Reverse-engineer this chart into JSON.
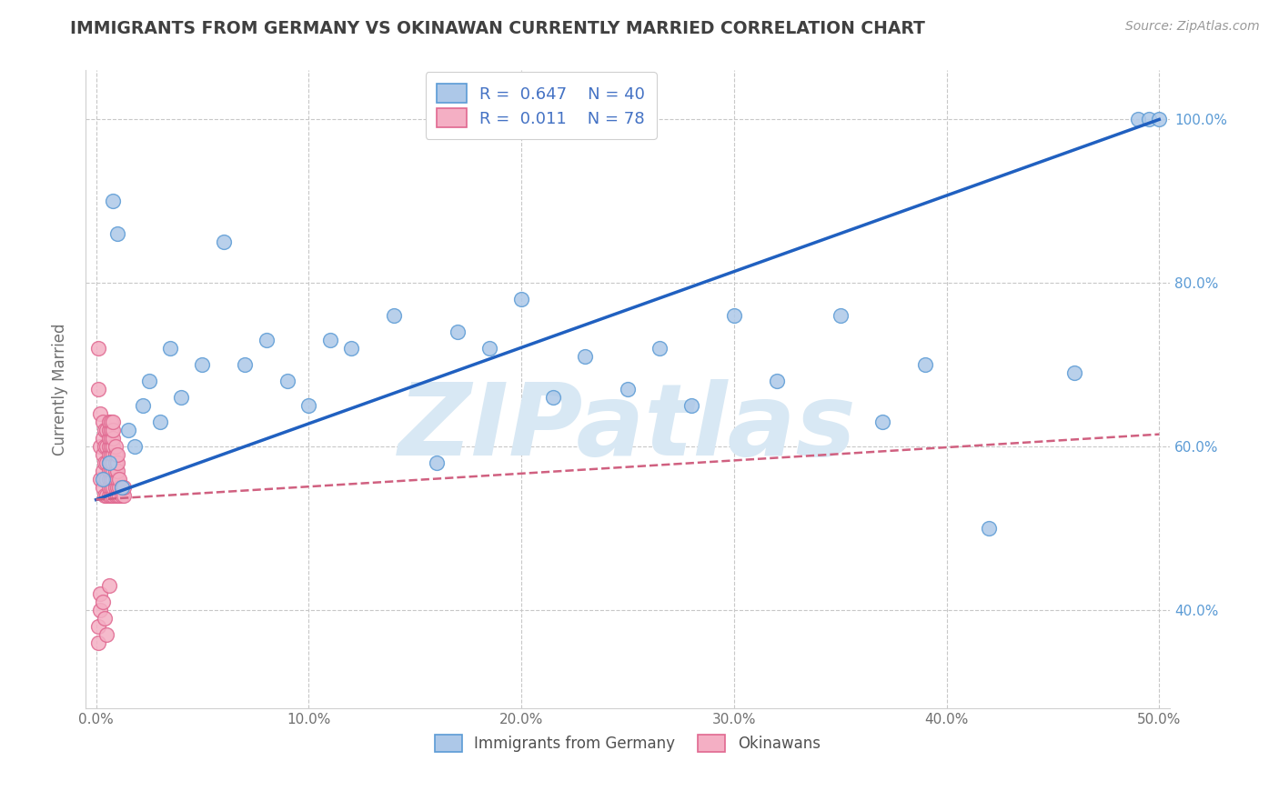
{
  "title": "IMMIGRANTS FROM GERMANY VS OKINAWAN CURRENTLY MARRIED CORRELATION CHART",
  "source_text": "Source: ZipAtlas.com",
  "xlabel": "",
  "ylabel": "Currently Married",
  "xlim": [
    -0.005,
    0.505
  ],
  "ylim": [
    0.28,
    1.06
  ],
  "xtick_labels": [
    "0.0%",
    "10.0%",
    "20.0%",
    "30.0%",
    "40.0%",
    "50.0%"
  ],
  "xtick_values": [
    0.0,
    0.1,
    0.2,
    0.3,
    0.4,
    0.5
  ],
  "ytick_labels": [
    "40.0%",
    "60.0%",
    "80.0%",
    "100.0%"
  ],
  "ytick_values": [
    0.4,
    0.6,
    0.8,
    1.0
  ],
  "blue_R": 0.647,
  "blue_N": 40,
  "pink_R": 0.011,
  "pink_N": 78,
  "blue_color": "#adc8e8",
  "blue_edge_color": "#5b9bd5",
  "pink_color": "#f4afc4",
  "pink_edge_color": "#e06890",
  "blue_line_color": "#2060c0",
  "pink_line_color": "#d06080",
  "background_color": "#ffffff",
  "grid_color": "#c8c8c8",
  "title_color": "#404040",
  "watermark_color": "#d8e8f4",
  "watermark_text": "ZIPatlas",
  "legend_R_color": "#4472c4",
  "blue_scatter_x": [
    0.003,
    0.006,
    0.008,
    0.01,
    0.012,
    0.015,
    0.018,
    0.022,
    0.025,
    0.03,
    0.035,
    0.04,
    0.05,
    0.06,
    0.07,
    0.08,
    0.09,
    0.1,
    0.11,
    0.12,
    0.14,
    0.16,
    0.17,
    0.185,
    0.2,
    0.215,
    0.23,
    0.25,
    0.265,
    0.28,
    0.3,
    0.32,
    0.35,
    0.37,
    0.39,
    0.42,
    0.46,
    0.49,
    0.495,
    0.5
  ],
  "blue_scatter_y": [
    0.56,
    0.58,
    0.9,
    0.86,
    0.55,
    0.62,
    0.6,
    0.65,
    0.68,
    0.63,
    0.72,
    0.66,
    0.7,
    0.85,
    0.7,
    0.73,
    0.68,
    0.65,
    0.73,
    0.72,
    0.76,
    0.58,
    0.74,
    0.72,
    0.78,
    0.66,
    0.71,
    0.67,
    0.72,
    0.65,
    0.76,
    0.68,
    0.76,
    0.63,
    0.7,
    0.5,
    0.69,
    1.0,
    1.0,
    1.0
  ],
  "pink_scatter_x": [
    0.001,
    0.001,
    0.002,
    0.002,
    0.002,
    0.003,
    0.003,
    0.003,
    0.003,
    0.003,
    0.004,
    0.004,
    0.004,
    0.004,
    0.004,
    0.005,
    0.005,
    0.005,
    0.005,
    0.005,
    0.006,
    0.006,
    0.006,
    0.006,
    0.006,
    0.006,
    0.006,
    0.006,
    0.006,
    0.006,
    0.007,
    0.007,
    0.007,
    0.007,
    0.007,
    0.007,
    0.007,
    0.007,
    0.007,
    0.007,
    0.008,
    0.008,
    0.008,
    0.008,
    0.008,
    0.008,
    0.008,
    0.008,
    0.008,
    0.008,
    0.009,
    0.009,
    0.009,
    0.009,
    0.009,
    0.009,
    0.009,
    0.01,
    0.01,
    0.01,
    0.01,
    0.01,
    0.01,
    0.011,
    0.011,
    0.011,
    0.012,
    0.012,
    0.013,
    0.013,
    0.001,
    0.001,
    0.002,
    0.002,
    0.003,
    0.004,
    0.005,
    0.006
  ],
  "pink_scatter_y": [
    0.72,
    0.67,
    0.56,
    0.6,
    0.64,
    0.55,
    0.57,
    0.59,
    0.61,
    0.63,
    0.54,
    0.56,
    0.58,
    0.6,
    0.62,
    0.54,
    0.56,
    0.58,
    0.6,
    0.62,
    0.54,
    0.56,
    0.57,
    0.58,
    0.59,
    0.6,
    0.61,
    0.62,
    0.63,
    0.55,
    0.54,
    0.55,
    0.56,
    0.57,
    0.58,
    0.59,
    0.6,
    0.61,
    0.62,
    0.63,
    0.54,
    0.55,
    0.56,
    0.57,
    0.58,
    0.59,
    0.6,
    0.61,
    0.62,
    0.63,
    0.54,
    0.55,
    0.56,
    0.57,
    0.58,
    0.59,
    0.6,
    0.54,
    0.55,
    0.56,
    0.57,
    0.58,
    0.59,
    0.54,
    0.55,
    0.56,
    0.54,
    0.55,
    0.54,
    0.55,
    0.38,
    0.36,
    0.4,
    0.42,
    0.41,
    0.39,
    0.37,
    0.43
  ],
  "blue_trend_x": [
    0.0,
    0.5
  ],
  "blue_trend_y": [
    0.535,
    1.0
  ],
  "pink_trend_x": [
    0.0,
    0.5
  ],
  "pink_trend_y": [
    0.535,
    0.615
  ]
}
